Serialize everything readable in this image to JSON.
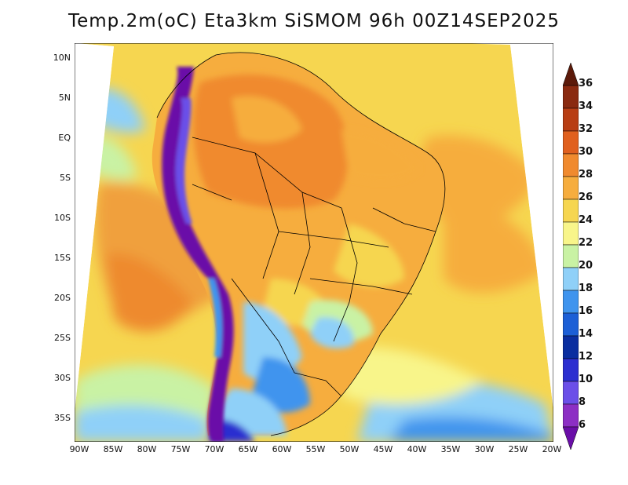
{
  "title": "Temp.2m(oC) Eta3km SiSMOM 96h 00Z14SEP2025",
  "axes": {
    "lat_labels": [
      "10N",
      "5N",
      "EQ",
      "5S",
      "10S",
      "15S",
      "20S",
      "25S",
      "30S",
      "35S"
    ],
    "lon_labels": [
      "90W",
      "85W",
      "80W",
      "75W",
      "70W",
      "65W",
      "60W",
      "55W",
      "50W",
      "45W",
      "40W",
      "35W",
      "30W",
      "25W",
      "20W"
    ]
  },
  "colorbar": {
    "labels": [
      "6",
      "8",
      "10",
      "12",
      "14",
      "16",
      "18",
      "20",
      "22",
      "24",
      "26",
      "28",
      "30",
      "32",
      "34",
      "36"
    ],
    "colors": [
      "#6a0ea8",
      "#8c2fc4",
      "#6b4fe8",
      "#2c2fd0",
      "#0a2ea0",
      "#1c5fd6",
      "#3f94ee",
      "#8fd0f8",
      "#c9f2a4",
      "#f8f58a",
      "#f6d650",
      "#f6ad3e",
      "#f08a2e",
      "#e0601e",
      "#b83e14",
      "#8a2a10",
      "#5c1a0a"
    ]
  }
}
